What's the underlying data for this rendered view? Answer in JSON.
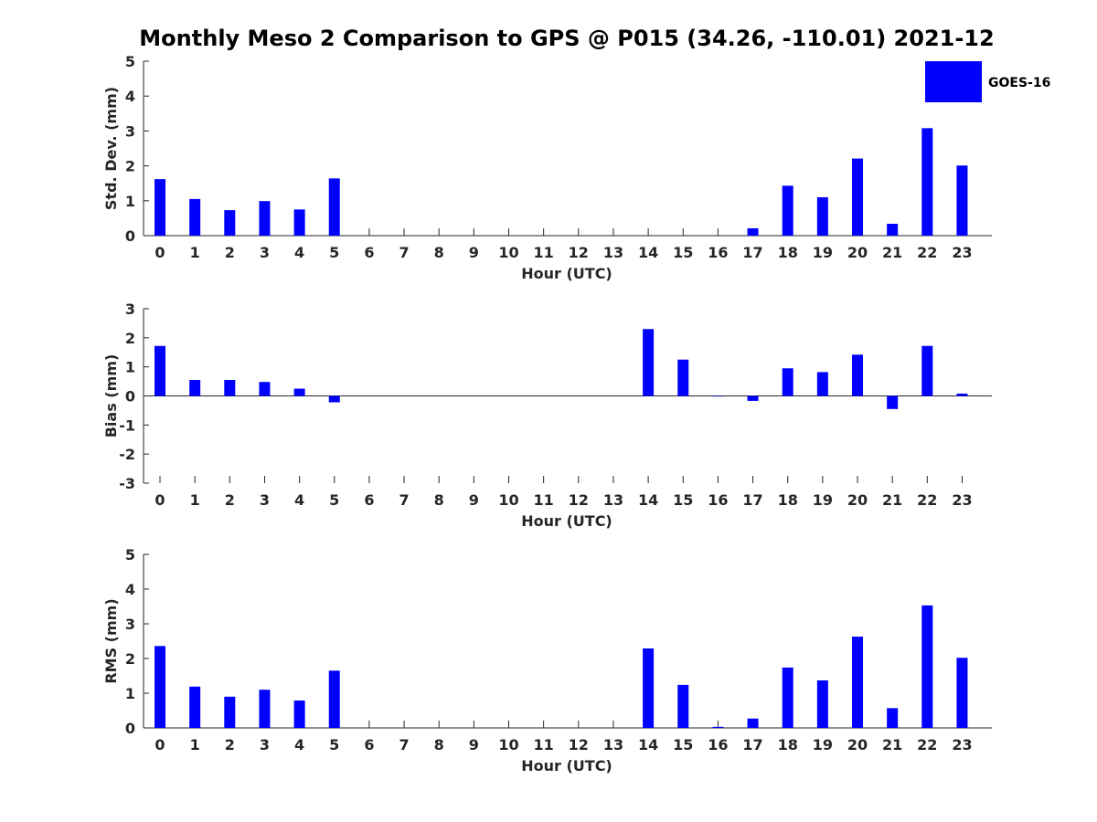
{
  "chart_data": {
    "title": "Monthly Meso 2 Comparison to GPS @ P015 (34.26, -110.01) 2021-12",
    "legend": {
      "label": "GOES-16",
      "color": "#0000ff",
      "placement": "top-right"
    },
    "bar_color": "#0000ff",
    "panels": [
      {
        "type": "bar",
        "name": "std-dev",
        "ylabel": "Std. Dev. (mm)",
        "xlabel": "Hour (UTC)",
        "ylim": [
          0,
          5
        ],
        "yticks": [
          "0",
          "1",
          "2",
          "3",
          "4",
          "5"
        ],
        "categories": [
          "0",
          "1",
          "2",
          "3",
          "4",
          "5",
          "6",
          "7",
          "8",
          "9",
          "10",
          "11",
          "12",
          "13",
          "14",
          "15",
          "16",
          "17",
          "18",
          "19",
          "20",
          "21",
          "22",
          "23"
        ],
        "values": [
          1.62,
          1.05,
          0.73,
          0.99,
          0.75,
          1.64,
          0,
          0,
          0,
          0,
          0,
          0,
          0,
          0,
          0,
          0,
          0,
          0.21,
          1.43,
          1.1,
          2.21,
          0.34,
          3.08,
          2.01
        ]
      },
      {
        "type": "bar",
        "name": "bias",
        "ylabel": "Bias (mm)",
        "xlabel": "Hour (UTC)",
        "ylim": [
          -3,
          3
        ],
        "yticks": [
          "-3",
          "-2",
          "-1",
          "0",
          "1",
          "2",
          "3"
        ],
        "categories": [
          "0",
          "1",
          "2",
          "3",
          "4",
          "5",
          "6",
          "7",
          "8",
          "9",
          "10",
          "11",
          "12",
          "13",
          "14",
          "15",
          "16",
          "17",
          "18",
          "19",
          "20",
          "21",
          "22",
          "23"
        ],
        "values": [
          1.72,
          0.55,
          0.55,
          0.48,
          0.25,
          -0.22,
          0,
          0,
          0,
          0,
          0,
          0,
          0,
          0,
          2.3,
          1.25,
          -0.02,
          -0.17,
          0.95,
          0.82,
          1.42,
          -0.45,
          1.72,
          0.08
        ]
      },
      {
        "type": "bar",
        "name": "rms",
        "ylabel": "RMS (mm)",
        "xlabel": "Hour (UTC)",
        "ylim": [
          0,
          5
        ],
        "yticks": [
          "0",
          "1",
          "2",
          "3",
          "4",
          "5"
        ],
        "categories": [
          "0",
          "1",
          "2",
          "3",
          "4",
          "5",
          "6",
          "7",
          "8",
          "9",
          "10",
          "11",
          "12",
          "13",
          "14",
          "15",
          "16",
          "17",
          "18",
          "19",
          "20",
          "21",
          "22",
          "23"
        ],
        "values": [
          2.36,
          1.19,
          0.9,
          1.1,
          0.79,
          1.65,
          0,
          0,
          0,
          0,
          0,
          0,
          0,
          0,
          2.29,
          1.24,
          0.03,
          0.27,
          1.74,
          1.37,
          2.63,
          0.57,
          3.53,
          2.02
        ]
      }
    ]
  }
}
